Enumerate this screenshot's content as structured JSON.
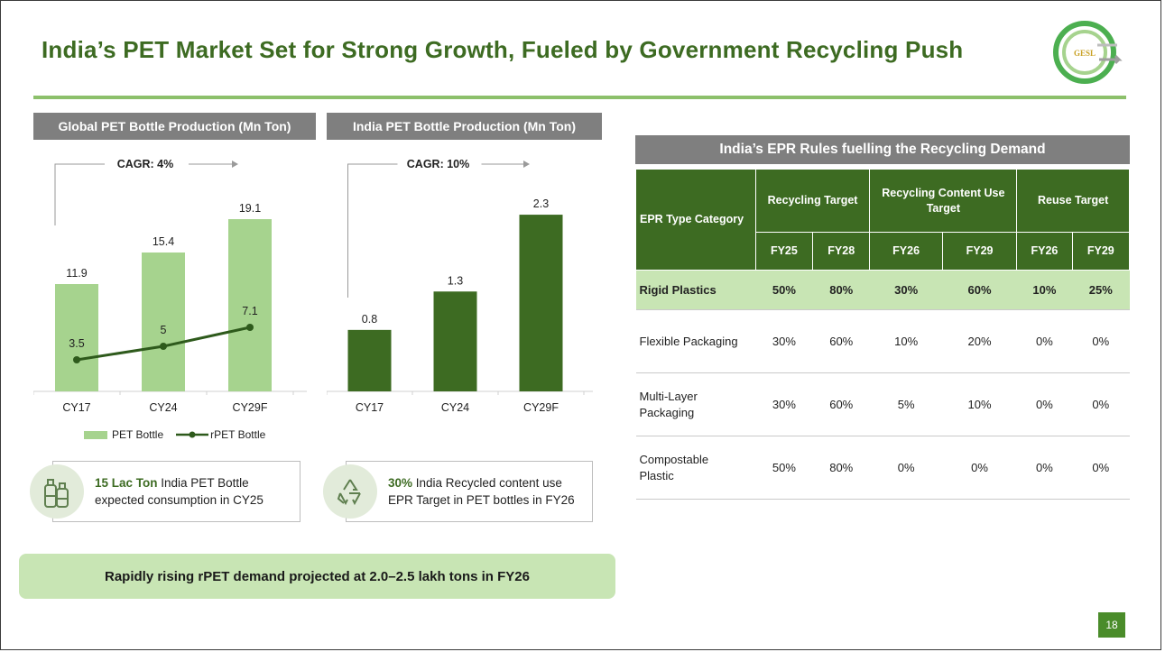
{
  "slide": {
    "title": "India’s PET Market Set for Strong Growth, Fueled by Government Recycling Push",
    "logo_text": "GESL",
    "page_number": "18",
    "colors": {
      "title_green": "#3d6b22",
      "light_green": "#a6d38e",
      "dark_green": "#3d6b22",
      "header_gray": "#7f7f7f",
      "highlight_row": "#c8e5b4"
    }
  },
  "chart_data": [
    {
      "type": "bar",
      "title": "Global PET Bottle Production (Mn Ton)",
      "categories": [
        "CY17",
        "CY24",
        "CY29F"
      ],
      "series": [
        {
          "name": "PET Bottle",
          "kind": "bar",
          "values": [
            11.9,
            15.4,
            19.1
          ],
          "color": "#a6d38e"
        },
        {
          "name": "rPET Bottle",
          "kind": "line",
          "values": [
            3.5,
            5.0,
            7.1
          ],
          "color": "#2e5a1c"
        }
      ],
      "ylim": [
        0,
        23
      ],
      "annotation": "CAGR: 4%",
      "legend": "bottom"
    },
    {
      "type": "bar",
      "title": "India PET Bottle Production (Mn Ton)",
      "categories": [
        "CY17",
        "CY24",
        "CY29F"
      ],
      "series": [
        {
          "kind": "bar",
          "values": [
            0.8,
            1.3,
            2.3
          ],
          "color": "#3d6b22"
        }
      ],
      "ylim": [
        0,
        2.7
      ],
      "annotation": "CAGR: 10%"
    }
  ],
  "info_cards": [
    {
      "icon": "bottles-icon",
      "highlight": "15 Lac Ton",
      "rest_line1": " India PET Bottle",
      "line2": "expected consumption in CY25"
    },
    {
      "icon": "recycle-icon",
      "highlight": "30%",
      "rest_line1": " India Recycled content use",
      "line2": "EPR Target in PET bottles in FY26"
    }
  ],
  "banner": "Rapidly rising rPET demand projected at 2.0–2.5 lakh tons in FY26",
  "epr_table": {
    "title": "India’s EPR Rules fuelling the Recycling Demand",
    "category_header": "EPR Type Category",
    "groups": [
      "Recycling Target",
      "Recycling Content Use Target",
      "Reuse Target"
    ],
    "years": [
      "FY25",
      "FY28",
      "FY26",
      "FY29",
      "FY26",
      "FY29"
    ],
    "rows": [
      {
        "category": "Rigid Plastics",
        "values": [
          "50%",
          "80%",
          "30%",
          "60%",
          "10%",
          "25%"
        ]
      },
      {
        "category": "Flexible Packaging",
        "values": [
          "30%",
          "60%",
          "10%",
          "20%",
          "0%",
          "0%"
        ]
      },
      {
        "category": "Multi-Layer Packaging",
        "values": [
          "30%",
          "60%",
          "5%",
          "10%",
          "0%",
          "0%"
        ]
      },
      {
        "category": "Compostable Plastic",
        "values": [
          "50%",
          "80%",
          "0%",
          "0%",
          "0%",
          "0%"
        ]
      }
    ]
  }
}
